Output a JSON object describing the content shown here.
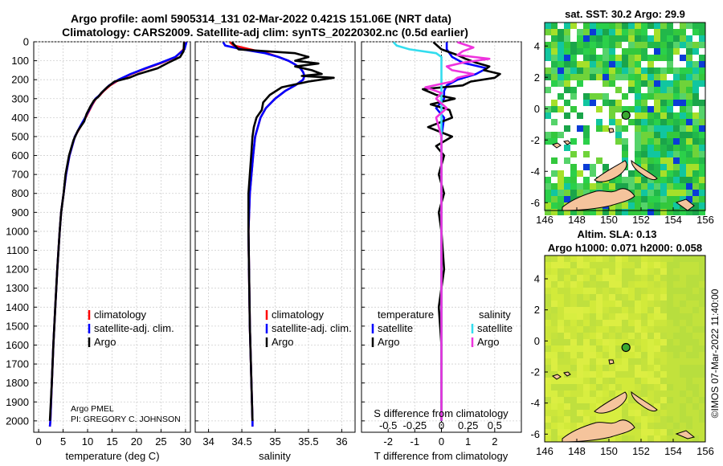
{
  "header": {
    "title_line1": "Argo profile: aoml 5905314_131 02-Mar-2022 0.421S 151.06E (NRT data)",
    "title_line2": "Climatology: CARS2009. Satellite-adj clim: synTS_20220302.nc (0.5d earlier)"
  },
  "colors": {
    "climatology": "#ff0000",
    "satellite_adj": "#0000ff",
    "argo": "#000000",
    "sat_salinity": "#33ddee",
    "argo_salinity": "#ee33dd"
  },
  "depth_axis": {
    "ticks": [
      0,
      100,
      200,
      300,
      400,
      500,
      600,
      700,
      800,
      900,
      1000,
      1100,
      1200,
      1300,
      1400,
      1500,
      1600,
      1700,
      1800,
      1900,
      2000
    ],
    "range": [
      0,
      2060
    ]
  },
  "chart_data": [
    {
      "type": "line",
      "id": "temperature",
      "xlabel": "temperature (deg C)",
      "xlim": [
        -1,
        31
      ],
      "xticks": [
        0,
        5,
        10,
        15,
        20,
        25,
        30
      ],
      "legend": [
        "climatology",
        "satellite-adj. clim.",
        "Argo"
      ],
      "annotation_line1": "Argo PMEL",
      "annotation_line2": "PI: GREGORY C. JOHNSON",
      "series": [
        {
          "name": "climatology",
          "color": "#ff0000",
          "depth": [
            2,
            40,
            80,
            110,
            140,
            170,
            200,
            230,
            260,
            285,
            300,
            330,
            360,
            400,
            450,
            500,
            600,
            700,
            800,
            900,
            1000,
            1200,
            1400,
            1600,
            1800,
            2000,
            2030
          ],
          "values": [
            30.0,
            29.6,
            28.0,
            25.2,
            22.0,
            19.0,
            16.5,
            14.6,
            13.3,
            12.4,
            11.7,
            11.0,
            10.4,
            9.6,
            8.5,
            7.4,
            6.3,
            5.6,
            5.1,
            4.6,
            4.3,
            3.8,
            3.4,
            3.0,
            2.7,
            2.4,
            2.3
          ]
        },
        {
          "name": "satellite-adj. clim.",
          "color": "#0000ff",
          "depth": [
            2,
            40,
            80,
            110,
            140,
            170,
            200,
            230,
            260,
            285,
            300,
            330,
            360,
            400,
            450,
            500,
            600,
            700,
            800,
            900,
            1000,
            1200,
            1400,
            1600,
            1800,
            2000,
            2030
          ],
          "values": [
            30.2,
            29.8,
            27.9,
            25.0,
            21.8,
            18.8,
            16.3,
            14.4,
            13.2,
            12.3,
            11.6,
            10.9,
            10.3,
            9.5,
            8.4,
            7.4,
            6.3,
            5.6,
            5.1,
            4.6,
            4.3,
            3.8,
            3.4,
            3.0,
            2.7,
            2.4,
            2.3
          ]
        },
        {
          "name": "Argo",
          "color": "#000000",
          "depth": [
            2,
            50,
            80,
            110,
            140,
            170,
            190,
            210,
            240,
            270,
            290,
            310,
            340,
            380,
            420,
            470,
            520,
            600,
            700,
            800,
            900,
            1000,
            1200,
            1400,
            1600,
            1800,
            2000
          ],
          "values": [
            29.7,
            29.6,
            28.9,
            26.5,
            24.3,
            20.4,
            18.5,
            15.5,
            14.0,
            12.8,
            12.2,
            11.3,
            10.6,
            9.8,
            9.3,
            8.0,
            7.1,
            6.2,
            5.5,
            5.1,
            4.6,
            4.3,
            3.8,
            3.4,
            3.0,
            2.7,
            2.3
          ]
        }
      ]
    },
    {
      "type": "line",
      "id": "salinity",
      "xlabel": "salinity",
      "xlim": [
        33.8,
        36.2
      ],
      "xticks": [
        34,
        34.5,
        35,
        35.5,
        36
      ],
      "xtick_labels": [
        "34",
        "34.5",
        "35",
        "35.5",
        "36"
      ],
      "legend": [
        "climatology",
        "satellite-adj. clim.",
        "Argo"
      ],
      "series": [
        {
          "name": "climatology",
          "color": "#ff0000",
          "depth": [
            2,
            20,
            40,
            60,
            80,
            100,
            120,
            140,
            160,
            180,
            200,
            230,
            260,
            300,
            350,
            400,
            500,
            600,
            800,
            1000,
            1500,
            2000,
            2030
          ],
          "values": [
            34.32,
            34.38,
            34.62,
            34.88,
            35.05,
            35.2,
            35.3,
            35.38,
            35.42,
            35.44,
            35.42,
            35.3,
            35.15,
            35.0,
            34.86,
            34.78,
            34.7,
            34.67,
            34.62,
            34.6,
            34.62,
            34.66,
            34.66
          ]
        },
        {
          "name": "satellite-adj. clim.",
          "color": "#0000ff",
          "depth": [
            2,
            20,
            40,
            60,
            80,
            100,
            120,
            140,
            160,
            180,
            200,
            230,
            260,
            300,
            350,
            400,
            500,
            600,
            800,
            1000,
            1500,
            2000,
            2030
          ],
          "values": [
            34.22,
            34.25,
            34.5,
            34.85,
            35.05,
            35.2,
            35.3,
            35.38,
            35.42,
            35.44,
            35.42,
            35.3,
            35.15,
            35.0,
            34.86,
            34.78,
            34.7,
            34.67,
            34.62,
            34.6,
            34.62,
            34.66,
            34.66
          ]
        },
        {
          "name": "Argo",
          "color": "#000000",
          "depth": [
            2,
            40,
            60,
            80,
            100,
            115,
            130,
            150,
            170,
            180,
            190,
            210,
            240,
            280,
            320,
            360,
            400,
            450,
            500,
            600,
            800,
            1000,
            1500,
            2000
          ],
          "values": [
            34.35,
            34.45,
            35.3,
            35.5,
            35.3,
            35.65,
            35.3,
            35.55,
            35.7,
            35.4,
            35.88,
            35.5,
            35.1,
            34.92,
            34.82,
            34.8,
            34.72,
            34.68,
            34.66,
            34.64,
            34.6,
            34.6,
            34.62,
            34.66
          ]
        }
      ]
    },
    {
      "type": "line",
      "id": "difference",
      "xlabel": "T difference from climatology",
      "xlabel_top": "S difference from climatology",
      "xlim": [
        -3,
        3
      ],
      "xticks": [
        -2,
        -1,
        0,
        1,
        2
      ],
      "s_ticks": [
        -0.5,
        -0.25,
        0,
        0.25,
        0.5
      ],
      "s_tick_labels": [
        "-0.5",
        "-0.25",
        "0",
        "0.25",
        "0.5"
      ],
      "legend_temperature_header": "temperature",
      "legend_salinity_header": "salinity",
      "legend_satellite": "satellite",
      "legend_argo": "Argo",
      "series": [
        {
          "name": "temperature satellite",
          "color": "#0000ff",
          "depth": [
            2,
            40,
            80,
            110,
            140,
            170,
            200,
            230,
            260,
            300,
            350,
            400,
            500,
            600,
            800,
            1000,
            1500,
            2000
          ],
          "values": [
            0.2,
            0.2,
            0.4,
            0.8,
            1.7,
            1.3,
            0.6,
            0.2,
            0.1,
            0.1,
            -0.2,
            0.1,
            0.0,
            0.0,
            0.0,
            0.0,
            0.0,
            0.0
          ]
        },
        {
          "name": "temperature Argo",
          "color": "#000000",
          "depth": [
            2,
            40,
            70,
            90,
            110,
            130,
            150,
            170,
            190,
            210,
            230,
            250,
            280,
            300,
            330,
            360,
            400,
            450,
            500,
            550,
            600,
            700,
            800,
            900,
            1000,
            1200,
            1400,
            1600,
            1800,
            2000
          ],
          "values": [
            -0.3,
            0.0,
            0.6,
            0.9,
            1.3,
            1.8,
            1.6,
            2.2,
            2.0,
            1.1,
            0.8,
            -0.7,
            -0.2,
            0.5,
            -0.4,
            0.3,
            0.4,
            -0.5,
            0.4,
            -0.2,
            0.1,
            -0.1,
            0.1,
            -0.1,
            0.0,
            0.1,
            -0.1,
            0.0,
            0.0,
            0.0
          ]
        },
        {
          "name": "salinity satellite",
          "color": "#33ddee",
          "depth": [
            2,
            20,
            40,
            60,
            80,
            100,
            150,
            200,
            300,
            400,
            500,
            600,
            800,
            1000,
            1500,
            2000
          ],
          "values": [
            -0.45,
            -0.42,
            -0.3,
            -0.05,
            0.0,
            0.0,
            0.0,
            0.0,
            0.0,
            0.0,
            0.0,
            0.0,
            0.0,
            0.0,
            0.0,
            0.0
          ]
        },
        {
          "name": "salinity Argo",
          "color": "#ee33dd",
          "depth": [
            2,
            30,
            50,
            70,
            90,
            110,
            130,
            150,
            170,
            190,
            210,
            240,
            270,
            300,
            350,
            400,
            500,
            600,
            800,
            1000,
            1500,
            2000
          ],
          "values": [
            0.15,
            0.3,
            0.2,
            0.15,
            0.45,
            0.2,
            0.05,
            0.1,
            0.3,
            0.15,
            0.1,
            -0.15,
            0.0,
            -0.05,
            0.05,
            -0.05,
            0.0,
            0.0,
            0.0,
            0.0,
            0.0,
            0.0
          ]
        }
      ]
    }
  ],
  "maps": {
    "sst": {
      "title": "sat. SST: 30.2 Argo: 29.9",
      "xticks": [
        146,
        148,
        150,
        152,
        154,
        156
      ],
      "yticks": [
        4,
        2,
        0,
        -2,
        -4,
        -6
      ],
      "lon_range": [
        146,
        156
      ],
      "lat_range": [
        -6.5,
        5.5
      ],
      "argo_lon": 151.06,
      "argo_lat": -0.421
    },
    "sla": {
      "title_line1": "Altim. SLA: 0.13",
      "title_line2": "Argo h1000: 0.071 h2000: 0.058",
      "xticks": [
        146,
        148,
        150,
        152,
        154,
        156
      ],
      "yticks": [
        4,
        2,
        0,
        -2,
        -4,
        -6
      ],
      "lon_range": [
        146,
        156
      ],
      "lat_range": [
        -6.5,
        5.5
      ],
      "argo_lon": 151.06,
      "argo_lat": -0.421
    }
  },
  "footer": {
    "vertical_label": "©IMOS 07-Mar-2022 11:40:00"
  }
}
